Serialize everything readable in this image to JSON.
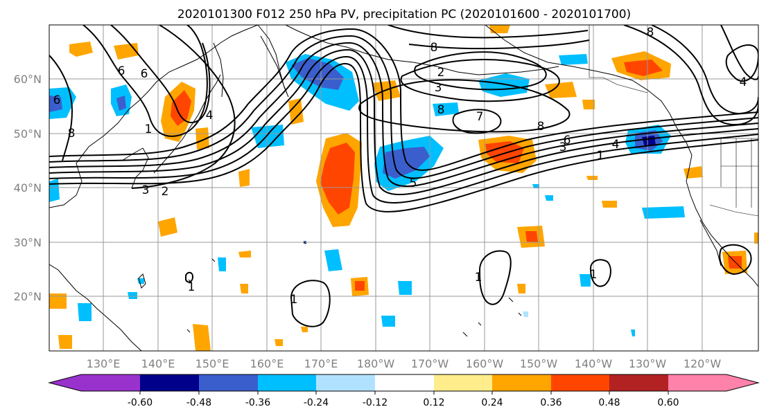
{
  "title": "2020101300 F012 250 hPa PV, precipitation PC (2020101600 - 2020101700)",
  "lat_labels": [
    "60°N",
    "50°N",
    "40°N",
    "30°N",
    "20°N"
  ],
  "lon_labels": [
    "130°E",
    "140°E",
    "150°E",
    "160°E",
    "170°E",
    "180°W",
    "170°W",
    "160°W",
    "150°W",
    "140°W",
    "130°W",
    "120°W"
  ],
  "colorbar": {
    "colors": [
      "#9932cc",
      "#00008b",
      "#3a5fcd",
      "#00bfff",
      "#b0e2ff",
      "#ffffff",
      "#ffffff",
      "#ffec8b",
      "#ffa500",
      "#ff4500",
      "#b22222",
      "#ff82ab"
    ],
    "tick_labels": [
      "-0.60",
      "-0.48",
      "-0.36",
      "-0.24",
      "-0.12",
      "0.12",
      "0.24",
      "0.36",
      "0.48",
      "0.60"
    ],
    "extend": "both"
  },
  "contour_labels": [
    "8",
    "6",
    "6",
    "4",
    "3",
    "2",
    "1",
    "8",
    "7",
    "8",
    "6",
    "4",
    "3",
    "1",
    "8",
    "6",
    "8",
    "5",
    "4",
    "3",
    "2",
    "1",
    "1",
    "1",
    "1"
  ],
  "map": {
    "grid": true,
    "coastlines": true,
    "borders": true,
    "field": "precipitation PC (shaded)",
    "contours": "250 hPa PV"
  },
  "colors": {
    "coast": "#000000",
    "grid": "#999999",
    "contour": "#000000"
  }
}
